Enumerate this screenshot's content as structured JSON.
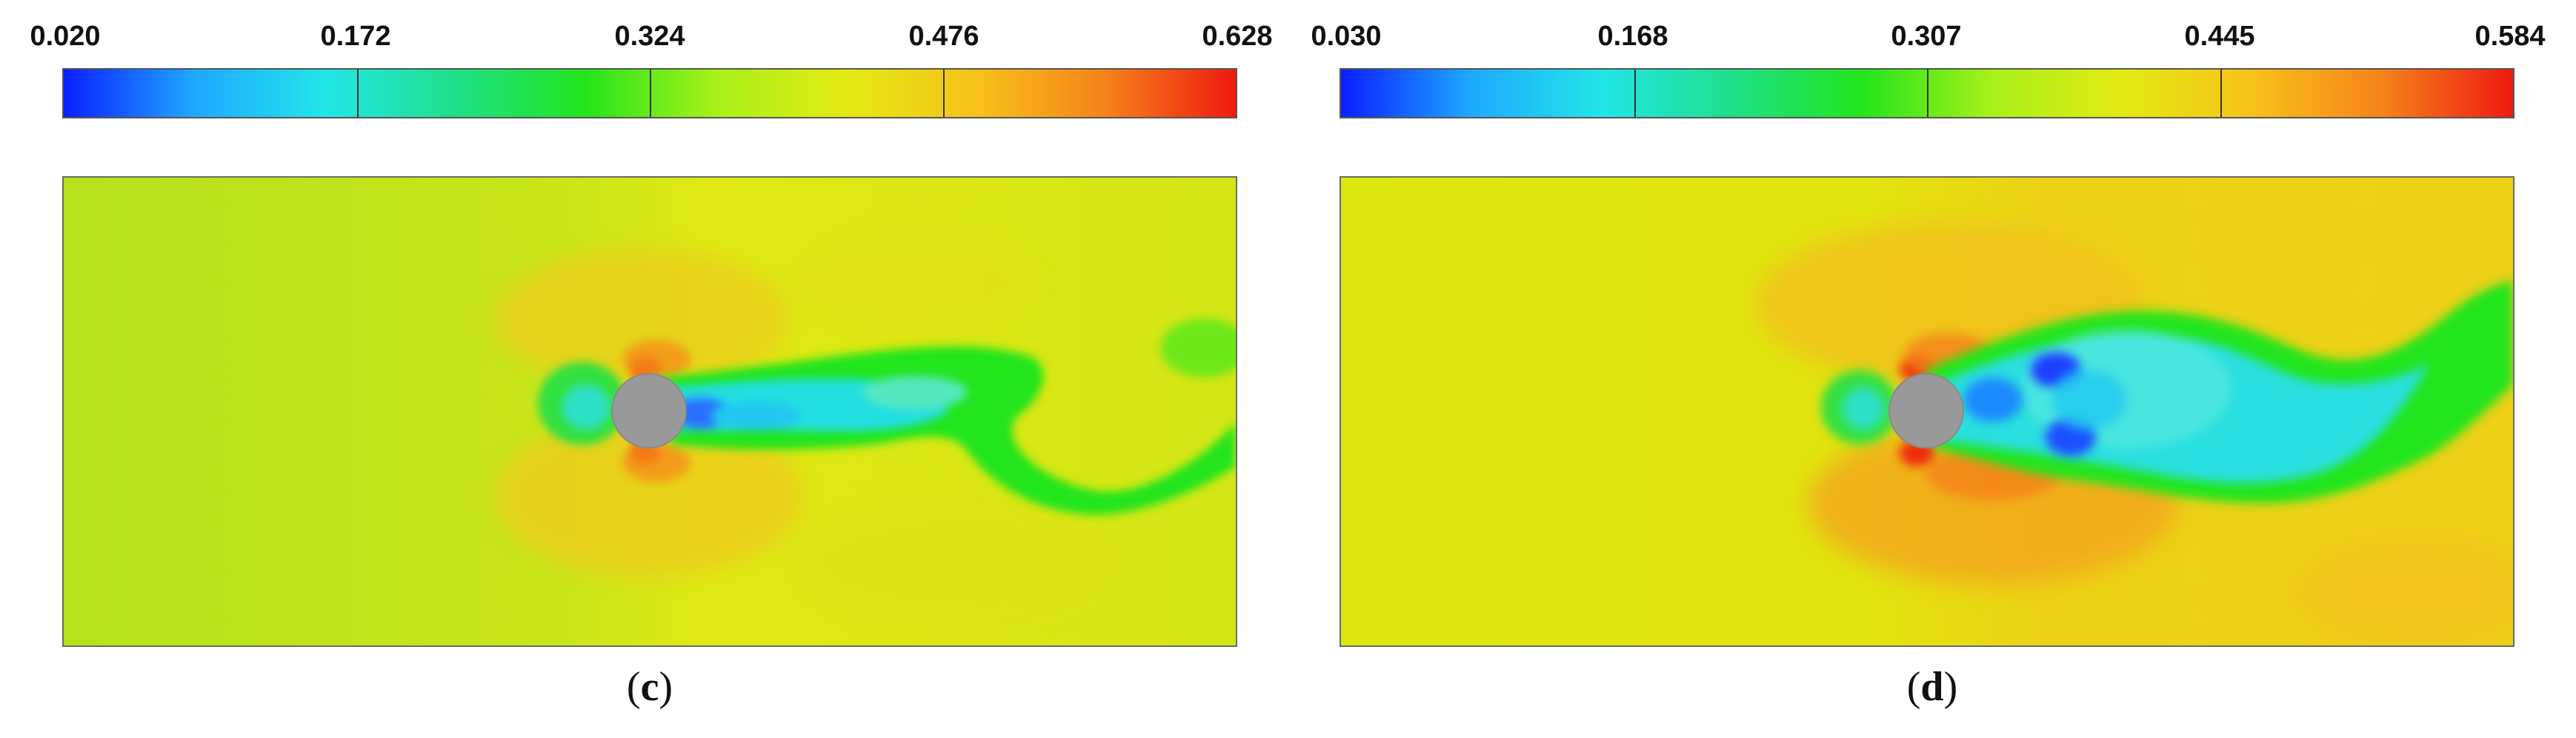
{
  "panels": [
    {
      "id": "c",
      "caption_letter": "c",
      "colorbar": {
        "ticks": [
          "0.020",
          "0.172",
          "0.324",
          "0.476",
          "0.628"
        ],
        "colormap": [
          "#0a1fff",
          "#1fa8ff",
          "#22e5e8",
          "#1fe08a",
          "#22e51b",
          "#a8f01a",
          "#e3ea12",
          "#f6c21a",
          "#f5821a",
          "#ef1a10"
        ]
      },
      "field": {
        "background_color": "#b9e31a",
        "cylinder_color": "#999999"
      }
    },
    {
      "id": "d",
      "caption_letter": "d",
      "colorbar": {
        "ticks": [
          "0.030",
          "0.168",
          "0.307",
          "0.445",
          "0.584"
        ],
        "colormap": [
          "#0a1fff",
          "#1fa8ff",
          "#22e5e8",
          "#1fe08a",
          "#22e51b",
          "#a8f01a",
          "#e3ea12",
          "#f6c21a",
          "#f5821a",
          "#ef1a10"
        ]
      },
      "field": {
        "background_color": "#dde60f",
        "cylinder_color": "#999999"
      }
    }
  ]
}
